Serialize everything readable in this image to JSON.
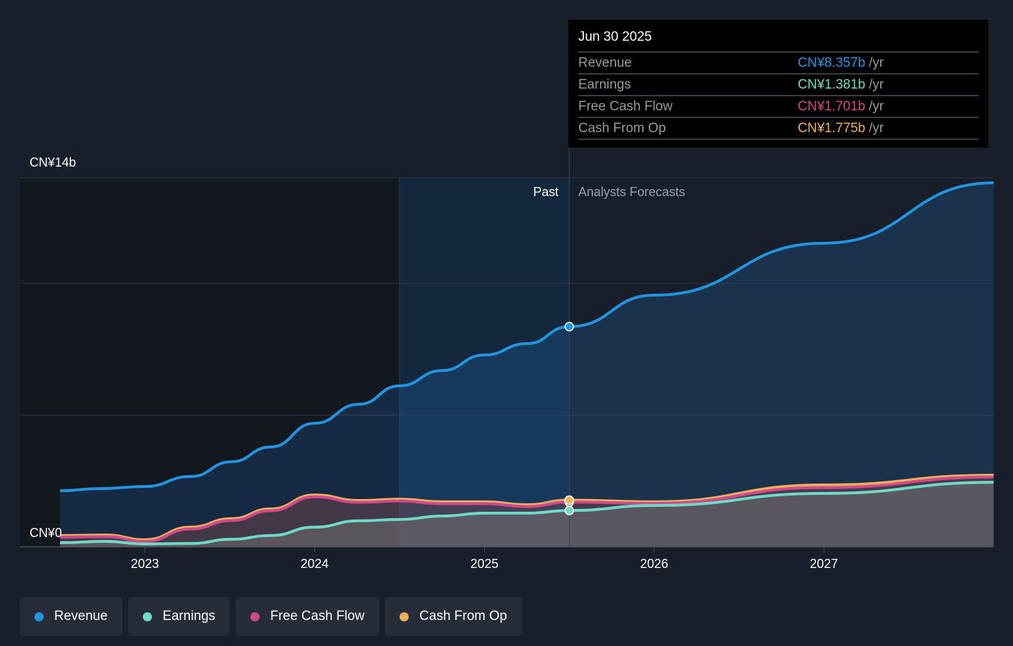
{
  "chart_data": {
    "type": "area",
    "title": "",
    "y_axis": {
      "min": 0,
      "max": 14,
      "top_label": "CN¥14b",
      "bottom_label": "CN¥0",
      "gridlines": [
        5,
        10,
        14
      ]
    },
    "x_axis": {
      "min": 2022.5,
      "max": 2028,
      "ticks": [
        2023,
        2024,
        2025,
        2026,
        2027
      ],
      "tick_labels": [
        "2023",
        "2024",
        "2025",
        "2026",
        "2027"
      ]
    },
    "past_label": "Past",
    "forecast_label": "Analysts Forecasts",
    "past_end": 2025.5,
    "highlight_start": 2024.5,
    "series": [
      {
        "name": "Revenue",
        "color": "#2394df",
        "x": [
          2022.5,
          2022.73,
          2023,
          2023.27,
          2023.51,
          2023.74,
          2024,
          2024.26,
          2024.5,
          2024.75,
          2025,
          2025.25,
          2025.5,
          2026,
          2027,
          2028
        ],
        "values": [
          2.13,
          2.21,
          2.29,
          2.67,
          3.23,
          3.79,
          4.69,
          5.41,
          6.11,
          6.69,
          7.28,
          7.71,
          8.357,
          9.55,
          11.52,
          13.81
        ]
      },
      {
        "name": "Earnings",
        "color": "#6fdac5",
        "x": [
          2022.5,
          2022.77,
          2023,
          2023.27,
          2023.51,
          2023.74,
          2024,
          2024.26,
          2024.5,
          2024.75,
          2025,
          2025.25,
          2025.5,
          2026,
          2027,
          2028
        ],
        "values": [
          0.16,
          0.21,
          0.11,
          0.13,
          0.29,
          0.43,
          0.75,
          0.99,
          1.04,
          1.17,
          1.28,
          1.28,
          1.381,
          1.57,
          2.03,
          2.45
        ]
      },
      {
        "name": "Free Cash Flow",
        "color": "#d2488a",
        "x": [
          2022.5,
          2022.77,
          2023,
          2023.27,
          2023.51,
          2023.74,
          2024,
          2024.26,
          2024.5,
          2024.75,
          2025,
          2025.25,
          2025.5,
          2026,
          2027,
          2028
        ],
        "values": [
          0.37,
          0.39,
          0.21,
          0.68,
          1.0,
          1.37,
          1.9,
          1.69,
          1.74,
          1.64,
          1.64,
          1.53,
          1.701,
          1.65,
          2.25,
          2.65
        ]
      },
      {
        "name": "Cash From Op",
        "color": "#eeb15b",
        "x": [
          2022.5,
          2022.77,
          2023,
          2023.27,
          2023.51,
          2023.74,
          2024,
          2024.26,
          2024.5,
          2024.75,
          2025,
          2025.25,
          2025.5,
          2026,
          2027,
          2028
        ],
        "values": [
          0.43,
          0.45,
          0.27,
          0.75,
          1.07,
          1.44,
          1.97,
          1.76,
          1.81,
          1.71,
          1.71,
          1.6,
          1.775,
          1.71,
          2.35,
          2.72
        ]
      }
    ]
  },
  "tooltip": {
    "date": "Jun 30 2025",
    "unit": "/yr",
    "rows": [
      {
        "label": "Revenue",
        "value": "CN¥8.357b",
        "color": "#2394df"
      },
      {
        "label": "Earnings",
        "value": "CN¥1.381b",
        "color": "#6fdac5"
      },
      {
        "label": "Free Cash Flow",
        "value": "CN¥1.701b",
        "color": "#d2488a"
      },
      {
        "label": "Cash From Op",
        "value": "CN¥1.775b",
        "color": "#eeb15b"
      }
    ]
  },
  "legend": [
    "Revenue",
    "Earnings",
    "Free Cash Flow",
    "Cash From Op"
  ]
}
